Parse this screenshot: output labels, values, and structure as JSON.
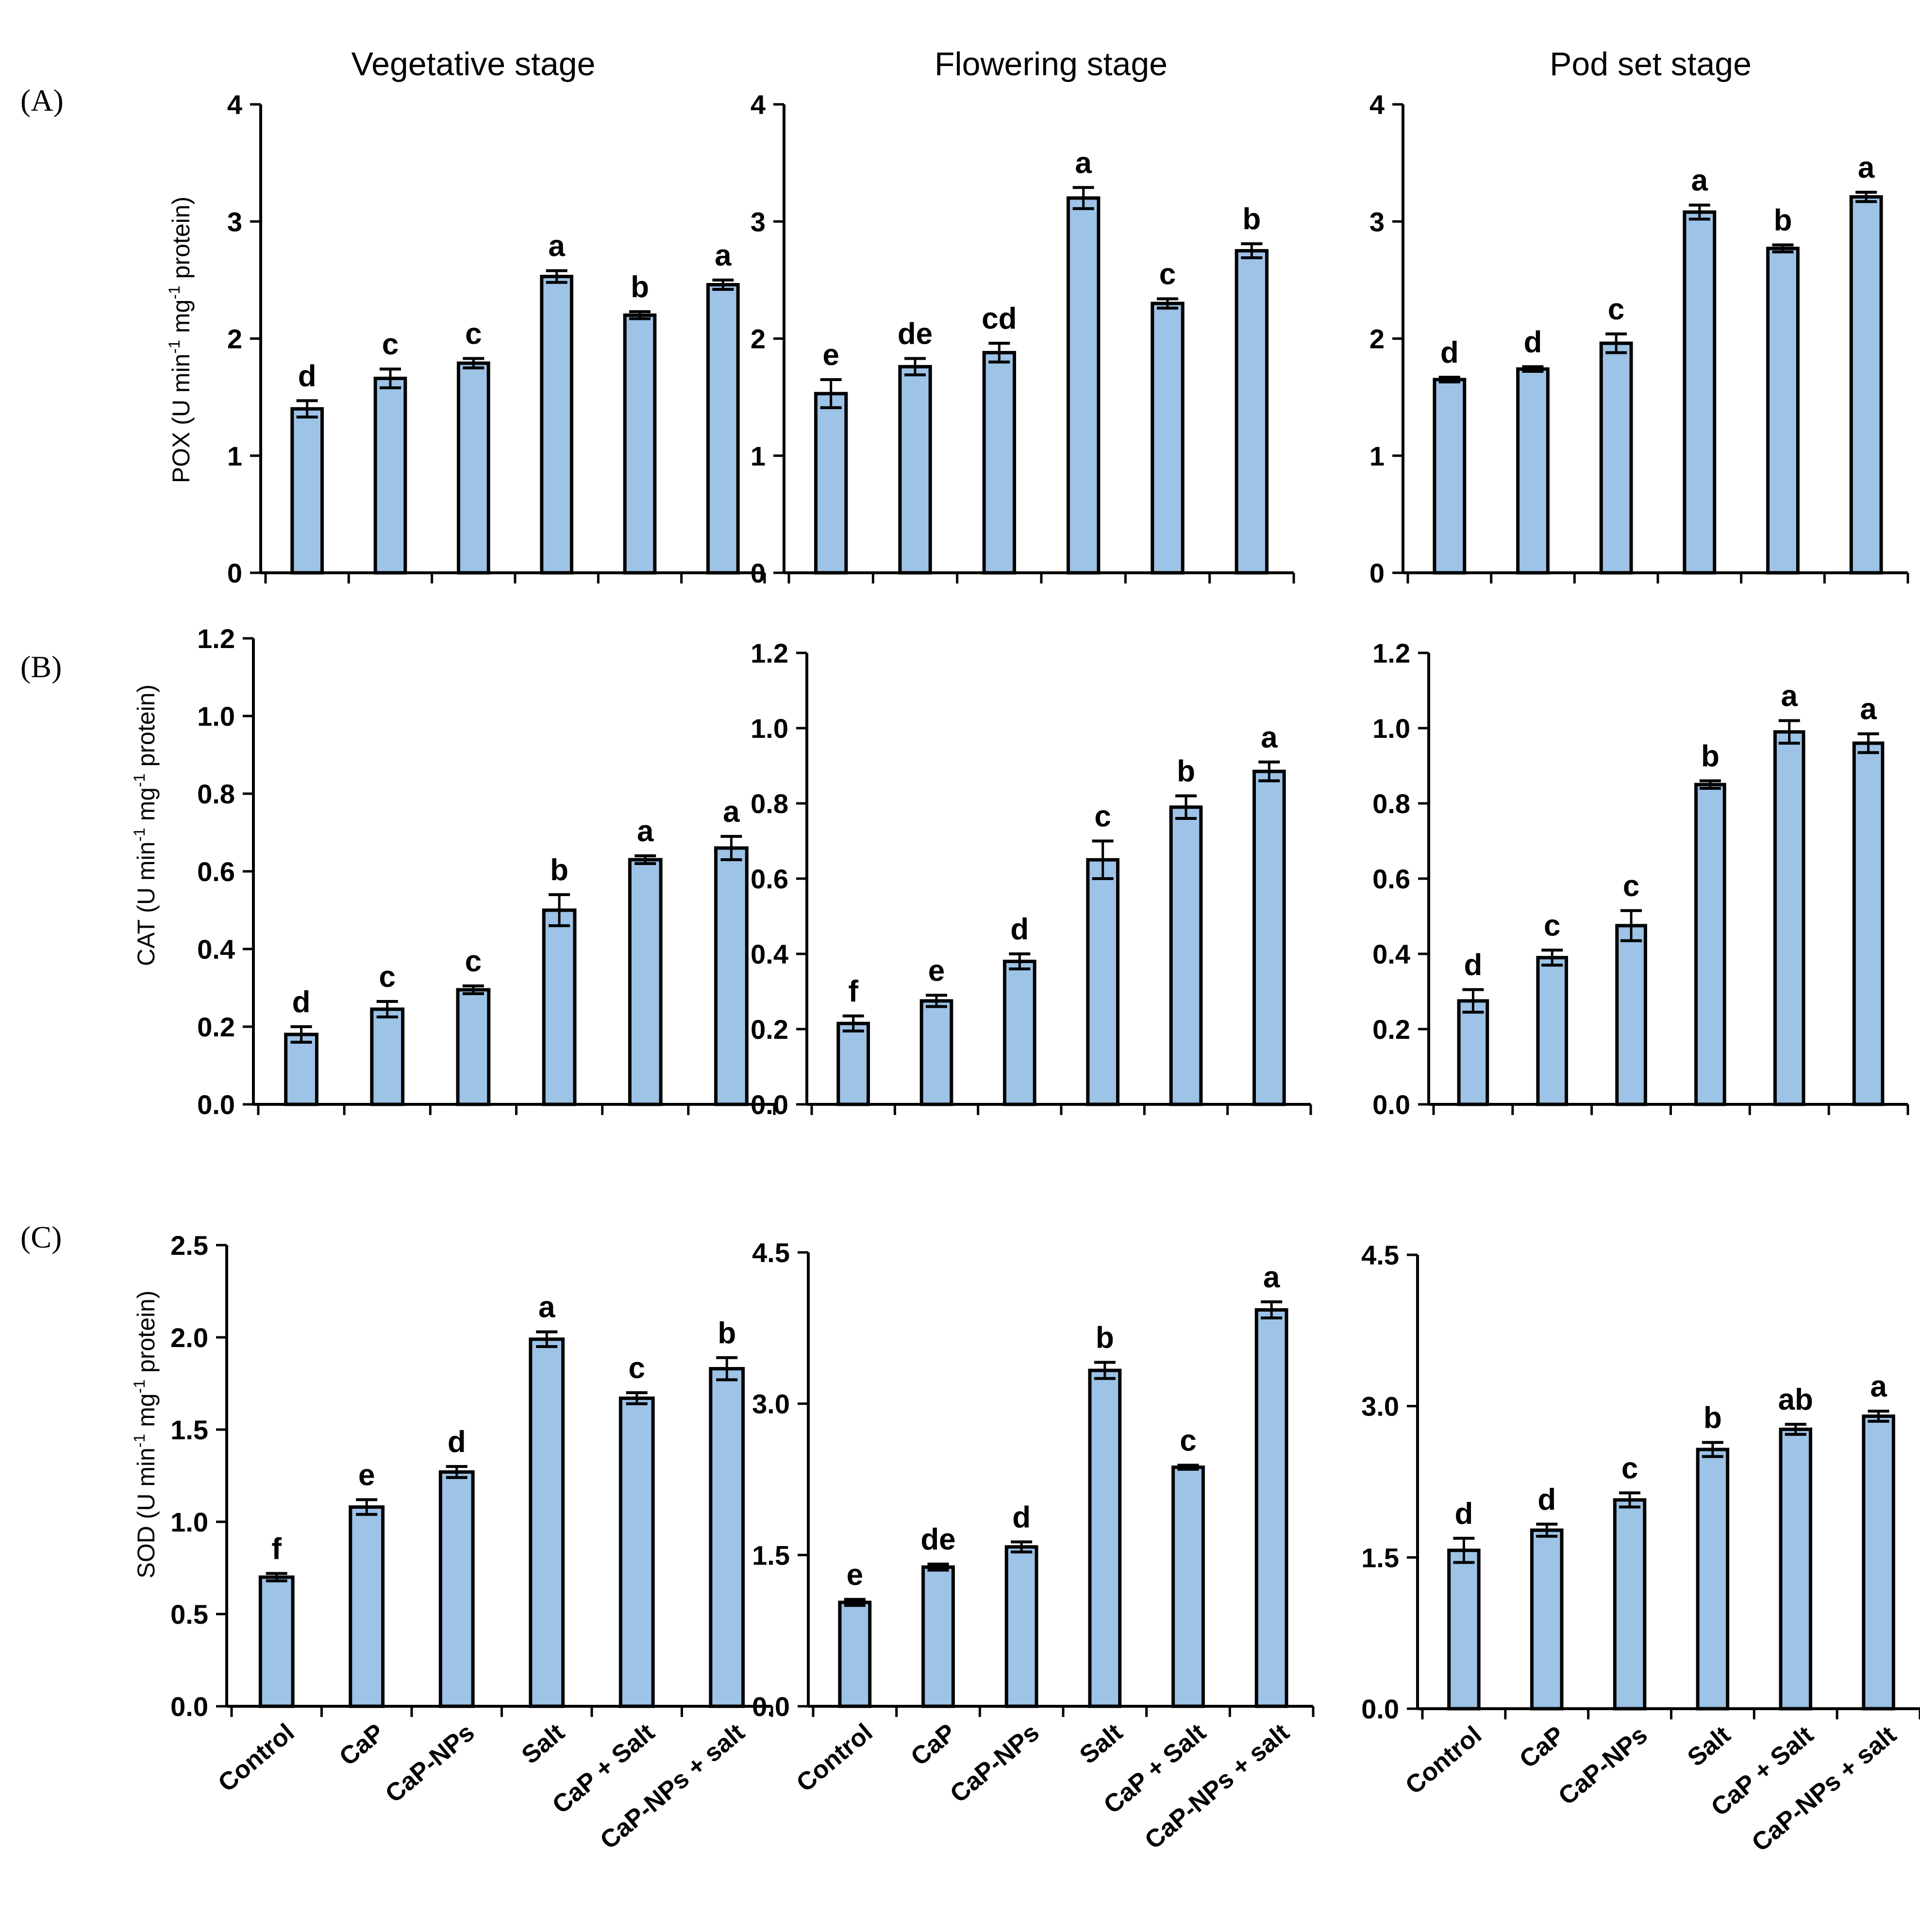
{
  "figure": {
    "stage_titles": [
      "Vegetative stage",
      "Flowering stage",
      "Pod set stage"
    ],
    "row_labels": [
      "(A)",
      "(B)",
      "(C)"
    ],
    "colors": {
      "bar": "#9dc3e6",
      "edge": "#000000"
    }
  },
  "chart_data": [
    {
      "type": "bar",
      "row": "A",
      "stage": "Vegetative stage",
      "ylabel_main": "POX (U min",
      "ylabel_sup1": "-1",
      "ylabel_mid": " mg",
      "ylabel_sup2": "-1",
      "ylabel_end": " protein)",
      "ylim": [
        0,
        4
      ],
      "ticks": [
        0,
        1,
        2,
        3,
        4
      ],
      "tick_labels": [
        "0",
        "1",
        "2",
        "3",
        "4"
      ],
      "categories": [
        "Control",
        "CaP",
        "CaP-NPs",
        "Salt",
        "CaP + Salt",
        "CaP-NPs + salt"
      ],
      "values": [
        1.4,
        1.66,
        1.79,
        2.53,
        2.2,
        2.46
      ],
      "errors": [
        0.07,
        0.08,
        0.04,
        0.05,
        0.03,
        0.04
      ],
      "letters": [
        "d",
        "c",
        "c",
        "a",
        "b",
        "a"
      ]
    },
    {
      "type": "bar",
      "row": "A",
      "stage": "Flowering stage",
      "ylim": [
        0,
        4
      ],
      "ticks": [
        0,
        1,
        2,
        3,
        4
      ],
      "tick_labels": [
        "0",
        "1",
        "2",
        "3",
        "4"
      ],
      "categories": [
        "Control",
        "CaP",
        "CaP-NPs",
        "Salt",
        "CaP + Salt",
        "CaP-NPs + salt"
      ],
      "values": [
        1.53,
        1.76,
        1.88,
        3.2,
        2.3,
        2.75
      ],
      "errors": [
        0.12,
        0.07,
        0.08,
        0.09,
        0.04,
        0.06
      ],
      "letters": [
        "e",
        "de",
        "cd",
        "a",
        "c",
        "b"
      ]
    },
    {
      "type": "bar",
      "row": "A",
      "stage": "Pod set stage",
      "ylim": [
        0,
        4
      ],
      "ticks": [
        0,
        1,
        2,
        3,
        4
      ],
      "tick_labels": [
        "0",
        "1",
        "2",
        "3",
        "4"
      ],
      "categories": [
        "Control",
        "CaP",
        "CaP-NPs",
        "Salt",
        "CaP + Salt",
        "CaP-NPs + salt"
      ],
      "values": [
        1.65,
        1.74,
        1.96,
        3.08,
        2.77,
        3.21
      ],
      "errors": [
        0.02,
        0.02,
        0.08,
        0.06,
        0.03,
        0.04
      ],
      "letters": [
        "d",
        "d",
        "c",
        "a",
        "b",
        "a"
      ]
    },
    {
      "type": "bar",
      "row": "B",
      "stage": "Vegetative stage",
      "ylabel_main": "CAT (U min",
      "ylabel_sup1": "-1",
      "ylabel_mid": " mg",
      "ylabel_sup2": "-1",
      "ylabel_end": " protein)",
      "ylim": [
        0,
        1.2
      ],
      "ticks": [
        0,
        0.2,
        0.4,
        0.6,
        0.8,
        1.0,
        1.2
      ],
      "tick_labels": [
        "0.0",
        "0.2",
        "0.4",
        "0.6",
        "0.8",
        "1.0",
        "1.2"
      ],
      "categories": [
        "Control",
        "CaP",
        "CaP-NPs",
        "Salt",
        "CaP + Salt",
        "CaP-NPs + salt"
      ],
      "values": [
        0.18,
        0.245,
        0.295,
        0.5,
        0.63,
        0.66
      ],
      "errors": [
        0.02,
        0.02,
        0.01,
        0.04,
        0.01,
        0.03
      ],
      "letters": [
        "d",
        "c",
        "c",
        "b",
        "a",
        "a"
      ]
    },
    {
      "type": "bar",
      "row": "B",
      "stage": "Flowering stage",
      "ylim": [
        0,
        1.2
      ],
      "ticks": [
        0,
        0.2,
        0.4,
        0.6,
        0.8,
        1.0,
        1.2
      ],
      "tick_labels": [
        "0.0",
        "0.2",
        "0.4",
        "0.6",
        "0.8",
        "1.0",
        "1.2"
      ],
      "categories": [
        "Control",
        "CaP",
        "CaP-NPs",
        "Salt",
        "CaP + Salt",
        "CaP-NPs + salt"
      ],
      "values": [
        0.215,
        0.275,
        0.38,
        0.65,
        0.79,
        0.885
      ],
      "errors": [
        0.02,
        0.015,
        0.02,
        0.05,
        0.03,
        0.025
      ],
      "letters": [
        "f",
        "e",
        "d",
        "c",
        "b",
        "a"
      ]
    },
    {
      "type": "bar",
      "row": "B",
      "stage": "Pod set stage",
      "ylim": [
        0,
        1.2
      ],
      "ticks": [
        0,
        0.2,
        0.4,
        0.6,
        0.8,
        1.0,
        1.2
      ],
      "tick_labels": [
        "0.0",
        "0.2",
        "0.4",
        "0.6",
        "0.8",
        "1.0",
        "1.2"
      ],
      "categories": [
        "Control",
        "CaP",
        "CaP-NPs",
        "Salt",
        "CaP + Salt",
        "CaP-NPs + salt"
      ],
      "values": [
        0.275,
        0.39,
        0.475,
        0.85,
        0.99,
        0.96
      ],
      "errors": [
        0.03,
        0.02,
        0.04,
        0.01,
        0.03,
        0.025
      ],
      "letters": [
        "d",
        "c",
        "c",
        "b",
        "a",
        "a"
      ]
    },
    {
      "type": "bar",
      "row": "C",
      "stage": "Vegetative stage",
      "ylabel_main": "SOD (U min",
      "ylabel_sup1": "-1",
      "ylabel_mid": " mg",
      "ylabel_sup2": "-1",
      "ylabel_end": " protein)",
      "ylim": [
        0,
        2.5
      ],
      "ticks": [
        0,
        0.5,
        1.0,
        1.5,
        2.0,
        2.5
      ],
      "tick_labels": [
        "0.0",
        "0.5",
        "1.0",
        "1.5",
        "2.0",
        "2.5"
      ],
      "categories": [
        "Control",
        "CaP",
        "CaP-NPs",
        "Salt",
        "CaP + Salt",
        "CaP-NPs + salt"
      ],
      "values": [
        0.7,
        1.08,
        1.27,
        1.99,
        1.67,
        1.83
      ],
      "errors": [
        0.02,
        0.04,
        0.03,
        0.04,
        0.03,
        0.06
      ],
      "letters": [
        "f",
        "e",
        "d",
        "a",
        "c",
        "b"
      ]
    },
    {
      "type": "bar",
      "row": "C",
      "stage": "Flowering stage",
      "ylim": [
        0,
        4.5
      ],
      "ticks": [
        0,
        1.5,
        3.0,
        4.5
      ],
      "tick_labels": [
        "0.0",
        "1.5",
        "3.0",
        "4.5"
      ],
      "categories": [
        "Control",
        "CaP",
        "CaP-NPs",
        "Salt",
        "CaP + Salt",
        "CaP-NPs + salt"
      ],
      "values": [
        1.03,
        1.38,
        1.58,
        3.33,
        2.37,
        3.93
      ],
      "errors": [
        0.03,
        0.03,
        0.05,
        0.08,
        0.02,
        0.08
      ],
      "letters": [
        "e",
        "de",
        "d",
        "b",
        "c",
        "a"
      ]
    },
    {
      "type": "bar",
      "row": "C",
      "stage": "Pod set stage",
      "ylim": [
        0,
        4.5
      ],
      "ticks": [
        0,
        1.5,
        3.0,
        4.5
      ],
      "tick_labels": [
        "0.0",
        "1.5",
        "3.0",
        "4.5"
      ],
      "categories": [
        "Control",
        "CaP",
        "CaP-NPs",
        "Salt",
        "CaP + Salt",
        "CaP-NPs + salt"
      ],
      "values": [
        1.57,
        1.77,
        2.07,
        2.57,
        2.77,
        2.9
      ],
      "errors": [
        0.12,
        0.06,
        0.07,
        0.07,
        0.05,
        0.05
      ],
      "letters": [
        "d",
        "d",
        "c",
        "b",
        "ab",
        "a"
      ]
    }
  ]
}
